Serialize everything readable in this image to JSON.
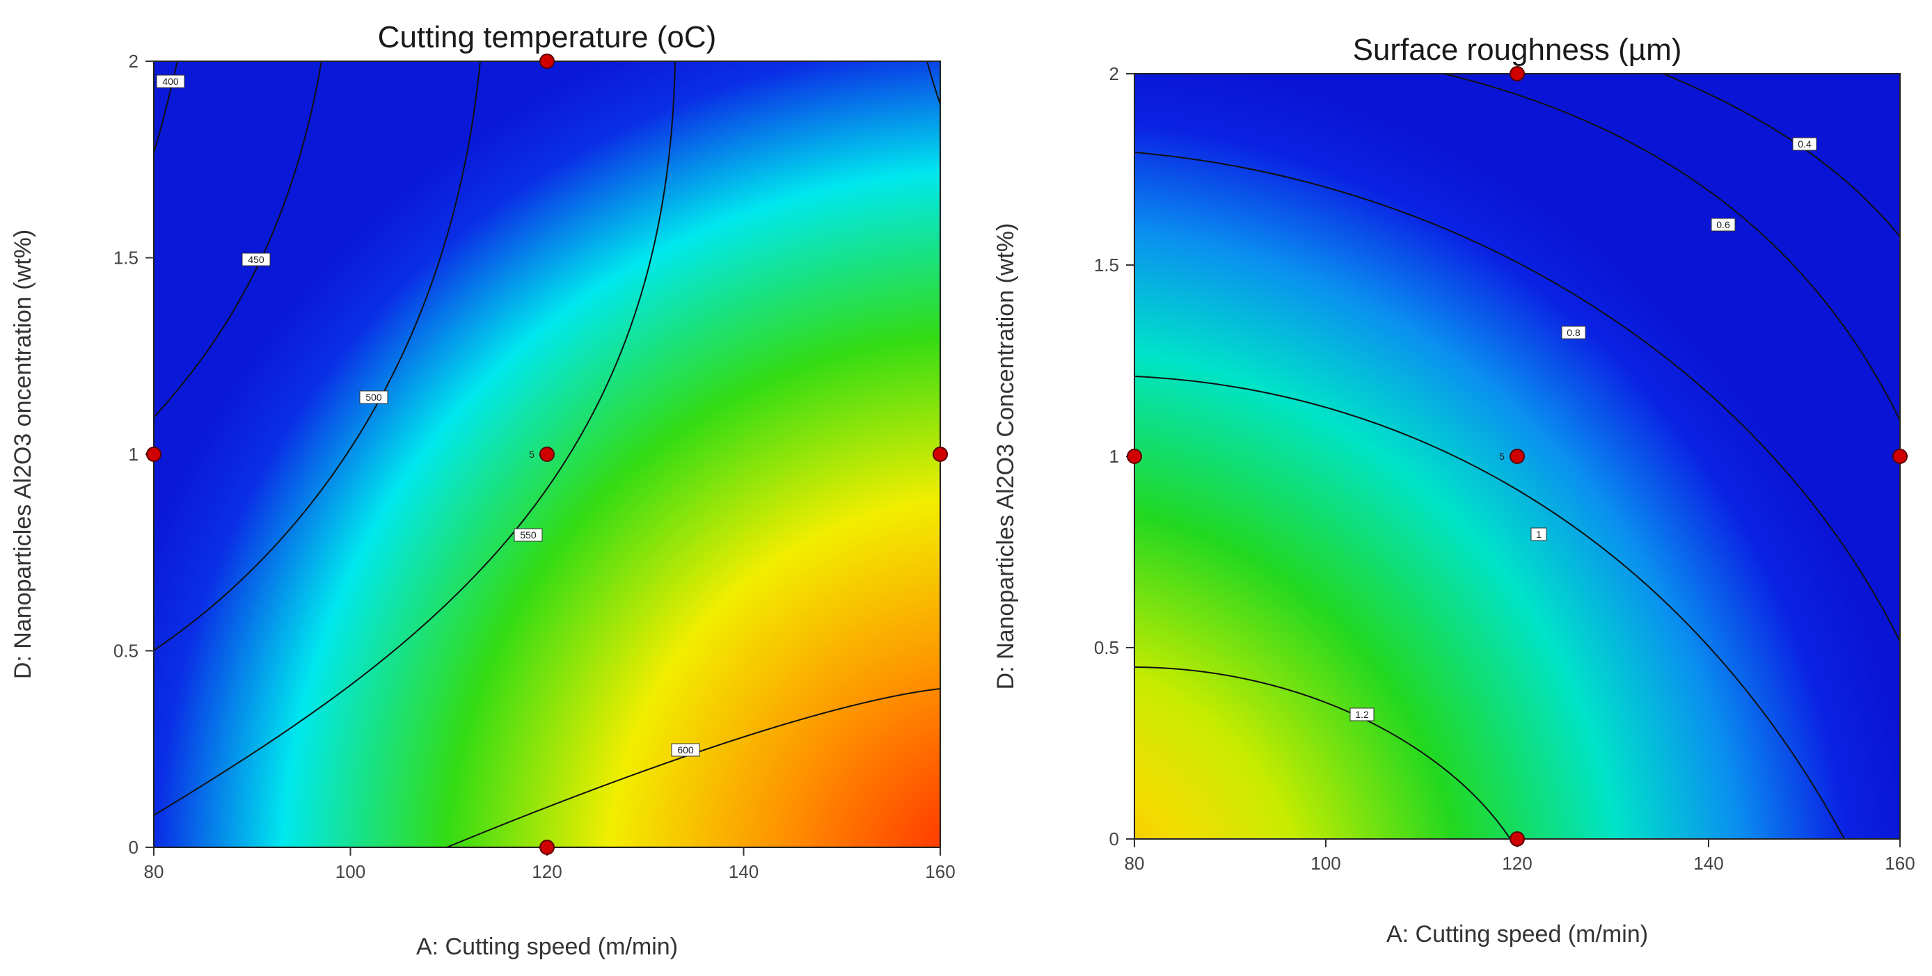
{
  "chart_data": [
    {
      "type": "heatmap",
      "subtype": "contour",
      "title": "Cutting temperature (oC)",
      "xlabel": "A: Cutting speed (m/min)",
      "ylabel": "D: Nanoparticles Al2O3 oncentration  (wt%)",
      "xlim": [
        80,
        160
      ],
      "ylim": [
        0,
        2
      ],
      "x_ticks": [
        "80",
        "100",
        "120",
        "140",
        "160"
      ],
      "y_ticks": [
        "0",
        "0.5",
        "1",
        "1.5",
        "2"
      ],
      "colormap": [
        "#0b1fe6",
        "#00e6f0",
        "#00dc1e",
        "#f0f000",
        "#ffa000",
        "#ff2a00"
      ],
      "contour_labels": [
        "400",
        "450",
        "500",
        "550",
        "600"
      ],
      "design_points": [
        {
          "x": 80,
          "y": 1
        },
        {
          "x": 120,
          "y": 2
        },
        {
          "x": 120,
          "y": 1,
          "replicates": "5"
        },
        {
          "x": 160,
          "y": 1
        },
        {
          "x": 120,
          "y": 0
        }
      ],
      "grid": false
    },
    {
      "type": "heatmap",
      "subtype": "contour",
      "title": "Surface roughness (µm)",
      "xlabel": "A: Cutting speed (m/min)",
      "ylabel": "D: Nanoparticles Al2O3 Concentration  (wt%)",
      "xlim": [
        80,
        160
      ],
      "ylim": [
        0,
        2
      ],
      "x_ticks": [
        "80",
        "100",
        "120",
        "140",
        "160"
      ],
      "y_ticks": [
        "0",
        "0.5",
        "1",
        "1.5",
        "2"
      ],
      "colormap": [
        "#0b1fe6",
        "#00e6f0",
        "#00dc1e",
        "#f0f000",
        "#ffa000"
      ],
      "contour_labels": [
        "0.4",
        "0.6",
        "0.8",
        "1",
        "1.2"
      ],
      "design_points": [
        {
          "x": 80,
          "y": 1
        },
        {
          "x": 120,
          "y": 2
        },
        {
          "x": 120,
          "y": 1,
          "replicates": "5"
        },
        {
          "x": 160,
          "y": 1
        },
        {
          "x": 120,
          "y": 0
        }
      ],
      "grid": false
    }
  ],
  "colors": {
    "point_fill": "#d00000",
    "point_stroke": "#5a0000",
    "contour_line": "#111111"
  }
}
